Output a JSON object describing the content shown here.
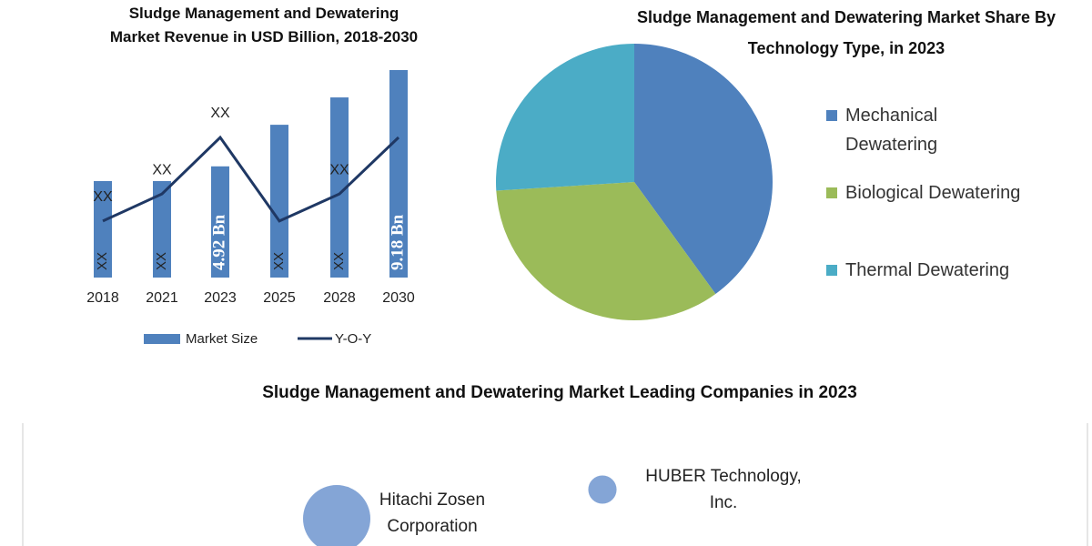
{
  "chart_data": [
    {
      "type": "bar",
      "title": "Sludge Management and Dewatering Market Revenue in USD Billion, 2018-2030",
      "categories": [
        "2018",
        "2021",
        "2023",
        "2025",
        "2028",
        "2030"
      ],
      "series": [
        {
          "name": "Market Size",
          "color": "#4f81bd",
          "values": [
            4.27,
            4.27,
            4.92,
            6.76,
            7.97,
            9.18
          ],
          "value_labels": [
            "XX",
            "XX",
            "4.92 Bn",
            "XX",
            "XX",
            "9.18 Bn"
          ]
        },
        {
          "name": "Y-O-Y",
          "type": "line",
          "color": "#1f3864",
          "values": [
            2.5,
            3.7,
            6.2,
            2.5,
            3.7,
            6.2
          ],
          "value_labels": [
            "XX",
            "XX",
            "XX",
            null,
            "XX",
            null
          ]
        }
      ]
    },
    {
      "type": "pie",
      "title": "Sludge Management and Dewatering Market Share By Technology Type, in 2023",
      "categories": [
        "Mechanical Dewatering",
        "Biological Dewatering",
        "Thermal Dewatering"
      ],
      "values": [
        40,
        34,
        26
      ],
      "colors": [
        "#4f81bd",
        "#9bbb59",
        "#4bacc6"
      ]
    },
    {
      "type": "bubble",
      "title": "Sludge Management and Dewatering Market Leading Companies in 2023",
      "categories": [
        "Hitachi Zosen Corporation",
        "HUBER Technology, Inc."
      ],
      "values": [
        100,
        42
      ],
      "color": "#84a5d6"
    }
  ]
}
